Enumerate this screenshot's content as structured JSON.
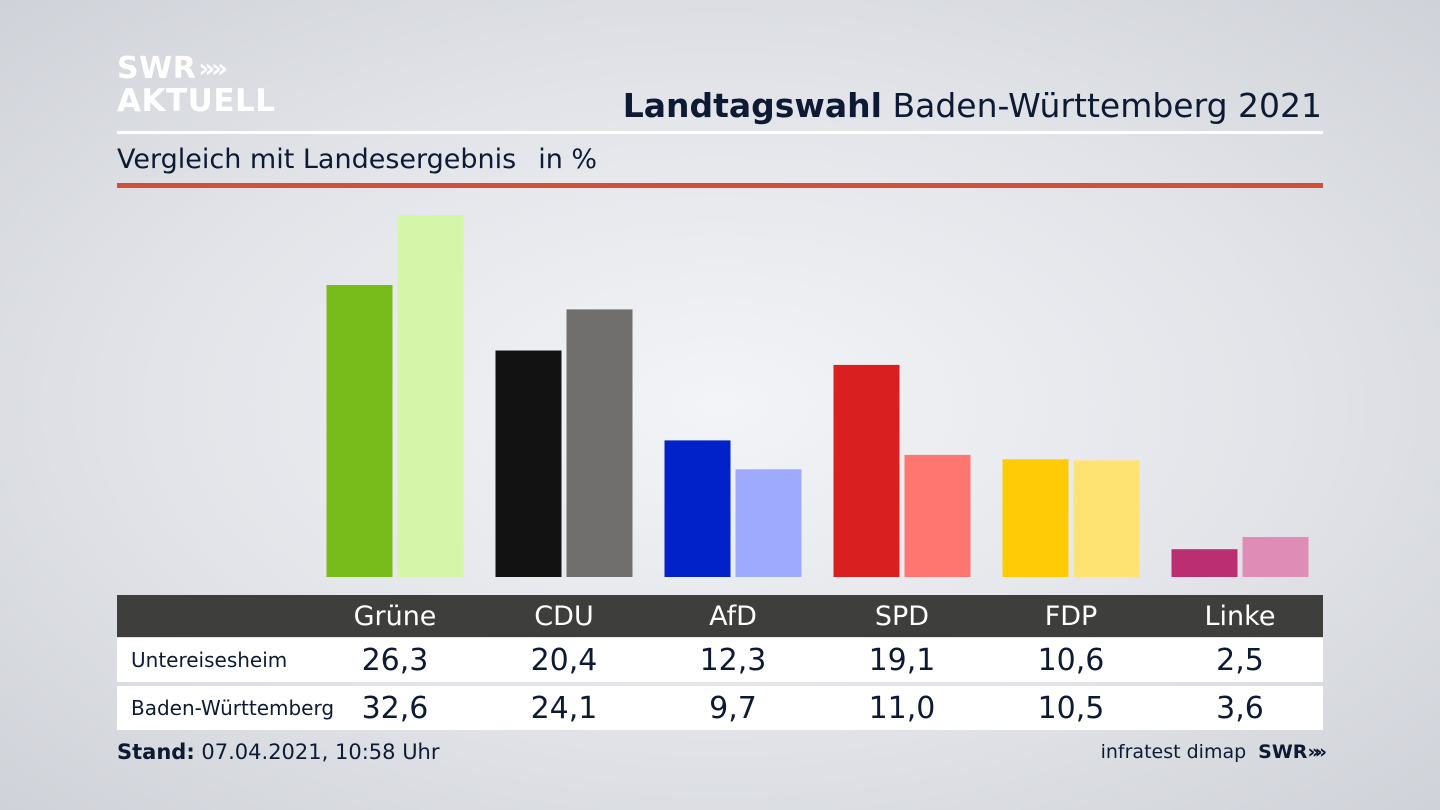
{
  "logo": {
    "line1": "SWR",
    "chevrons": "»",
    "line2": "AKTUELL"
  },
  "header": {
    "title_bold": "Landtagswahl",
    "title_rest": "Baden-Württemberg 2021",
    "subtitle": "Vergleich mit Landesergebnis",
    "unit": "in %"
  },
  "table": {
    "rows": [
      {
        "label": "Untereisesheim",
        "values": [
          "26,3",
          "20,4",
          "12,3",
          "19,1",
          "10,6",
          "2,5"
        ]
      },
      {
        "label": "Baden-Württemberg",
        "values": [
          "32,6",
          "24,1",
          "9,7",
          "11,0",
          "10,5",
          "3,6"
        ]
      }
    ]
  },
  "footer": {
    "stand_label": "Stand:",
    "stand_value": "07.04.2021, 10:58 Uhr",
    "source": "infratest dimap",
    "brand": "SWR",
    "brand_chevrons": "»"
  },
  "chart_data": {
    "type": "bar",
    "title": "Landtagswahl Baden-Württemberg 2021",
    "subtitle": "Vergleich mit Landesergebnis",
    "ylabel": "in %",
    "ylim": [
      0,
      32.6
    ],
    "categories": [
      "Grüne",
      "CDU",
      "AfD",
      "SPD",
      "FDP",
      "Linke"
    ],
    "series": [
      {
        "name": "Untereisesheim",
        "values": [
          26.3,
          20.4,
          12.3,
          19.1,
          10.6,
          2.5
        ]
      },
      {
        "name": "Baden-Württemberg",
        "values": [
          32.6,
          24.1,
          9.7,
          11.0,
          10.5,
          3.6
        ]
      }
    ],
    "colors": {
      "Untereisesheim": [
        "#78bc1c",
        "#121212",
        "#0022c8",
        "#d91f1f",
        "#fecb06",
        "#bb2f72"
      ],
      "Baden-Württemberg": [
        "#d5f5a8",
        "#706f6d",
        "#9daafe",
        "#ff7670",
        "#fee372",
        "#df8db7"
      ]
    }
  }
}
